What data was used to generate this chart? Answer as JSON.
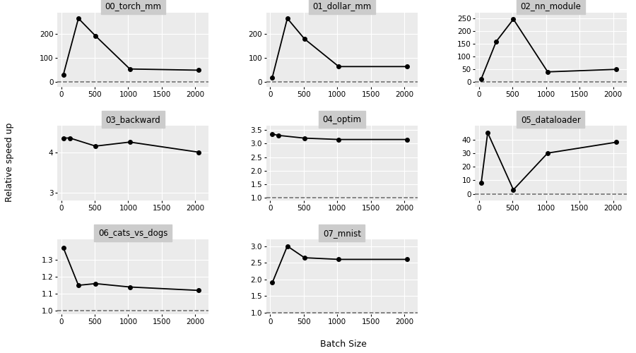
{
  "subplots": [
    {
      "title": "00_torch_mm",
      "x": [
        32,
        256,
        512,
        1024,
        2048
      ],
      "y": [
        32,
        265,
        192,
        55,
        50
      ],
      "hline": 0,
      "ylim": [
        -20,
        290
      ],
      "yticks": [
        0,
        100,
        200
      ]
    },
    {
      "title": "01_dollar_mm",
      "x": [
        32,
        256,
        512,
        1024,
        2048
      ],
      "y": [
        20,
        265,
        180,
        65,
        65
      ],
      "hline": 0,
      "ylim": [
        -20,
        290
      ],
      "yticks": [
        0,
        100,
        200
      ]
    },
    {
      "title": "02_nn_module",
      "x": [
        32,
        256,
        512,
        1024,
        2048
      ],
      "y": [
        12,
        160,
        248,
        40,
        50
      ],
      "hline": 0,
      "ylim": [
        -20,
        275
      ],
      "yticks": [
        0,
        50,
        100,
        150,
        200,
        250
      ]
    },
    {
      "title": "03_backward",
      "x": [
        32,
        128,
        512,
        1024,
        2048
      ],
      "y": [
        4.35,
        4.35,
        4.15,
        4.25,
        4.0
      ],
      "hline": 1,
      "ylim": [
        2.8,
        4.65
      ],
      "yticks": [
        3,
        4
      ]
    },
    {
      "title": "04_optim",
      "x": [
        32,
        128,
        512,
        1024,
        2048
      ],
      "y": [
        3.35,
        3.3,
        3.2,
        3.15,
        3.15
      ],
      "hline": 1,
      "ylim": [
        0.9,
        3.65
      ],
      "yticks": [
        1.0,
        1.5,
        2.0,
        2.5,
        3.0,
        3.5
      ]
    },
    {
      "title": "05_dataloader",
      "x": [
        32,
        128,
        512,
        1024,
        2048
      ],
      "y": [
        8,
        45,
        3,
        30,
        38
      ],
      "hline": 0,
      "ylim": [
        -5,
        50
      ],
      "yticks": [
        0,
        10,
        20,
        30,
        40
      ]
    },
    {
      "title": "06_cats_vs_dogs",
      "x": [
        32,
        256,
        512,
        1024,
        2048
      ],
      "y": [
        1.37,
        1.15,
        1.16,
        1.14,
        1.12
      ],
      "hline": 1,
      "ylim": [
        0.98,
        1.42
      ],
      "yticks": [
        1.0,
        1.1,
        1.2,
        1.3
      ]
    },
    {
      "title": "07_mnist",
      "x": [
        32,
        256,
        512,
        1024,
        2048
      ],
      "y": [
        1.9,
        3.0,
        2.65,
        2.6,
        2.6
      ],
      "hline": 1,
      "ylim": [
        0.95,
        3.2
      ],
      "yticks": [
        1.0,
        1.5,
        2.0,
        2.5,
        3.0
      ]
    }
  ],
  "xlabel": "Batch Size",
  "ylabel": "Relative speed up",
  "bg_color": "#ebebeb",
  "title_bg": "#cccccc",
  "line_color": "black",
  "marker": "o",
  "markersize": 4,
  "linewidth": 1.3,
  "hline_style": "--",
  "hline_color": "#666666",
  "grid_color": "white",
  "title_fontsize": 8.5,
  "label_fontsize": 9,
  "tick_fontsize": 7.5
}
